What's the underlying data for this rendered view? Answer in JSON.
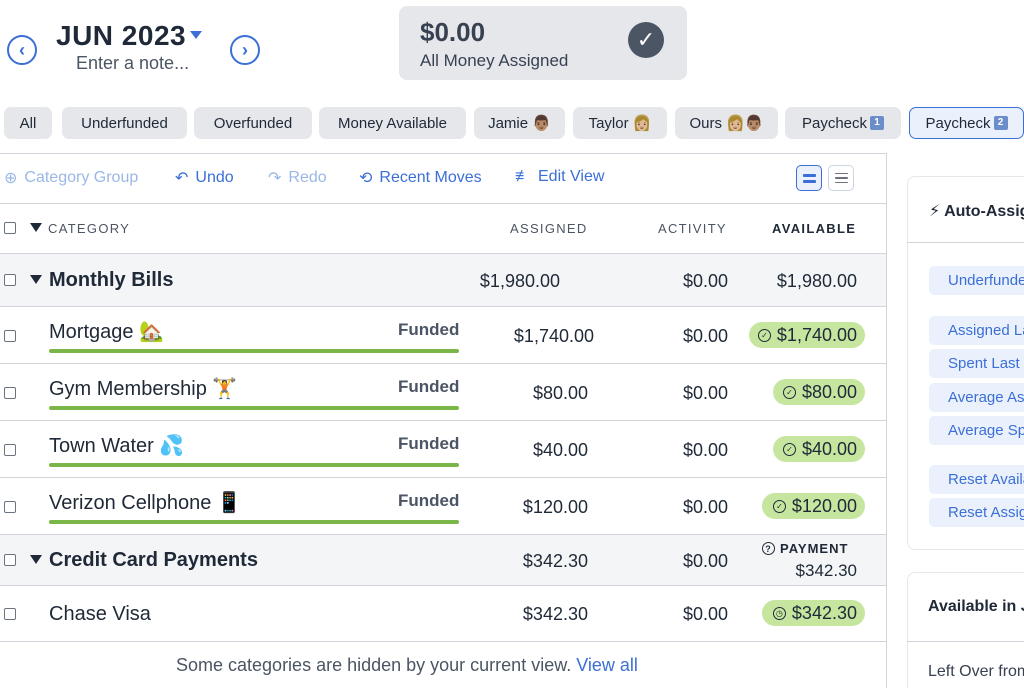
{
  "header": {
    "month": "JUN 2023",
    "note_placeholder": "Enter a note...",
    "prev_icon": "chevron-left-icon",
    "next_icon": "chevron-right-icon",
    "assigned_amount": "$0.00",
    "assigned_label": "All Money Assigned"
  },
  "filters": [
    {
      "label": "All"
    },
    {
      "label": "Underfunded"
    },
    {
      "label": "Overfunded"
    },
    {
      "label": "Money Available"
    },
    {
      "label": "Jamie",
      "emoji": "👨🏽"
    },
    {
      "label": "Taylor",
      "emoji": "👩🏼"
    },
    {
      "label": "Ours",
      "emoji": "👩🏼👨🏽"
    },
    {
      "label": "Paycheck",
      "badge": "1"
    },
    {
      "label": "Paycheck",
      "badge": "2",
      "active": true
    }
  ],
  "toolbar": {
    "category_group": "Category Group",
    "undo": "Undo",
    "redo": "Redo",
    "recent_moves": "Recent Moves",
    "edit_view": "Edit View"
  },
  "table": {
    "headers": {
      "category": "CATEGORY",
      "assigned": "ASSIGNED",
      "activity": "ACTIVITY",
      "available": "AVAILABLE"
    },
    "groups": [
      {
        "name": "Monthly Bills",
        "assigned": "$1,980.00",
        "activity": "$0.00",
        "available": "$1,980.00",
        "categories": [
          {
            "name": "Mortgage 🏡",
            "status": "Funded",
            "assigned": "$1,740.00",
            "activity": "$0.00",
            "available": "$1,740.00"
          },
          {
            "name": "Gym Membership 🏋️",
            "status": "Funded",
            "assigned": "$80.00",
            "activity": "$0.00",
            "available": "$80.00"
          },
          {
            "name": "Town Water 💦",
            "status": "Funded",
            "assigned": "$40.00",
            "activity": "$0.00",
            "available": "$40.00"
          },
          {
            "name": "Verizon Cellphone 📱",
            "status": "Funded",
            "assigned": "$120.00",
            "activity": "$0.00",
            "available": "$120.00"
          }
        ]
      },
      {
        "name": "Credit Card Payments",
        "assigned": "$342.30",
        "activity": "$0.00",
        "payment_label": "PAYMENT",
        "available": "$342.30",
        "categories": [
          {
            "name": "Chase Visa",
            "assigned": "$342.30",
            "activity": "$0.00",
            "available": "$342.30"
          }
        ]
      }
    ],
    "hidden_message": "Some categories are hidden by your current view.",
    "view_all": "View all"
  },
  "right_panel": {
    "auto_assign_title": "Auto-Assign",
    "auto_assign_buttons": [
      "Underfunded",
      "Assigned Last Month",
      "Spent Last Month",
      "Average Assigned",
      "Average Spent",
      "Reset Available Amounts",
      "Reset Assigned Amounts"
    ],
    "available_title": "Available in June",
    "left_over": "Left Over from Last Month"
  },
  "colors": {
    "accent": "#3b6fd6",
    "funded_green": "#7ab648",
    "pill_green": "#c6e6a0",
    "chip_gray": "#e5e7eb"
  }
}
